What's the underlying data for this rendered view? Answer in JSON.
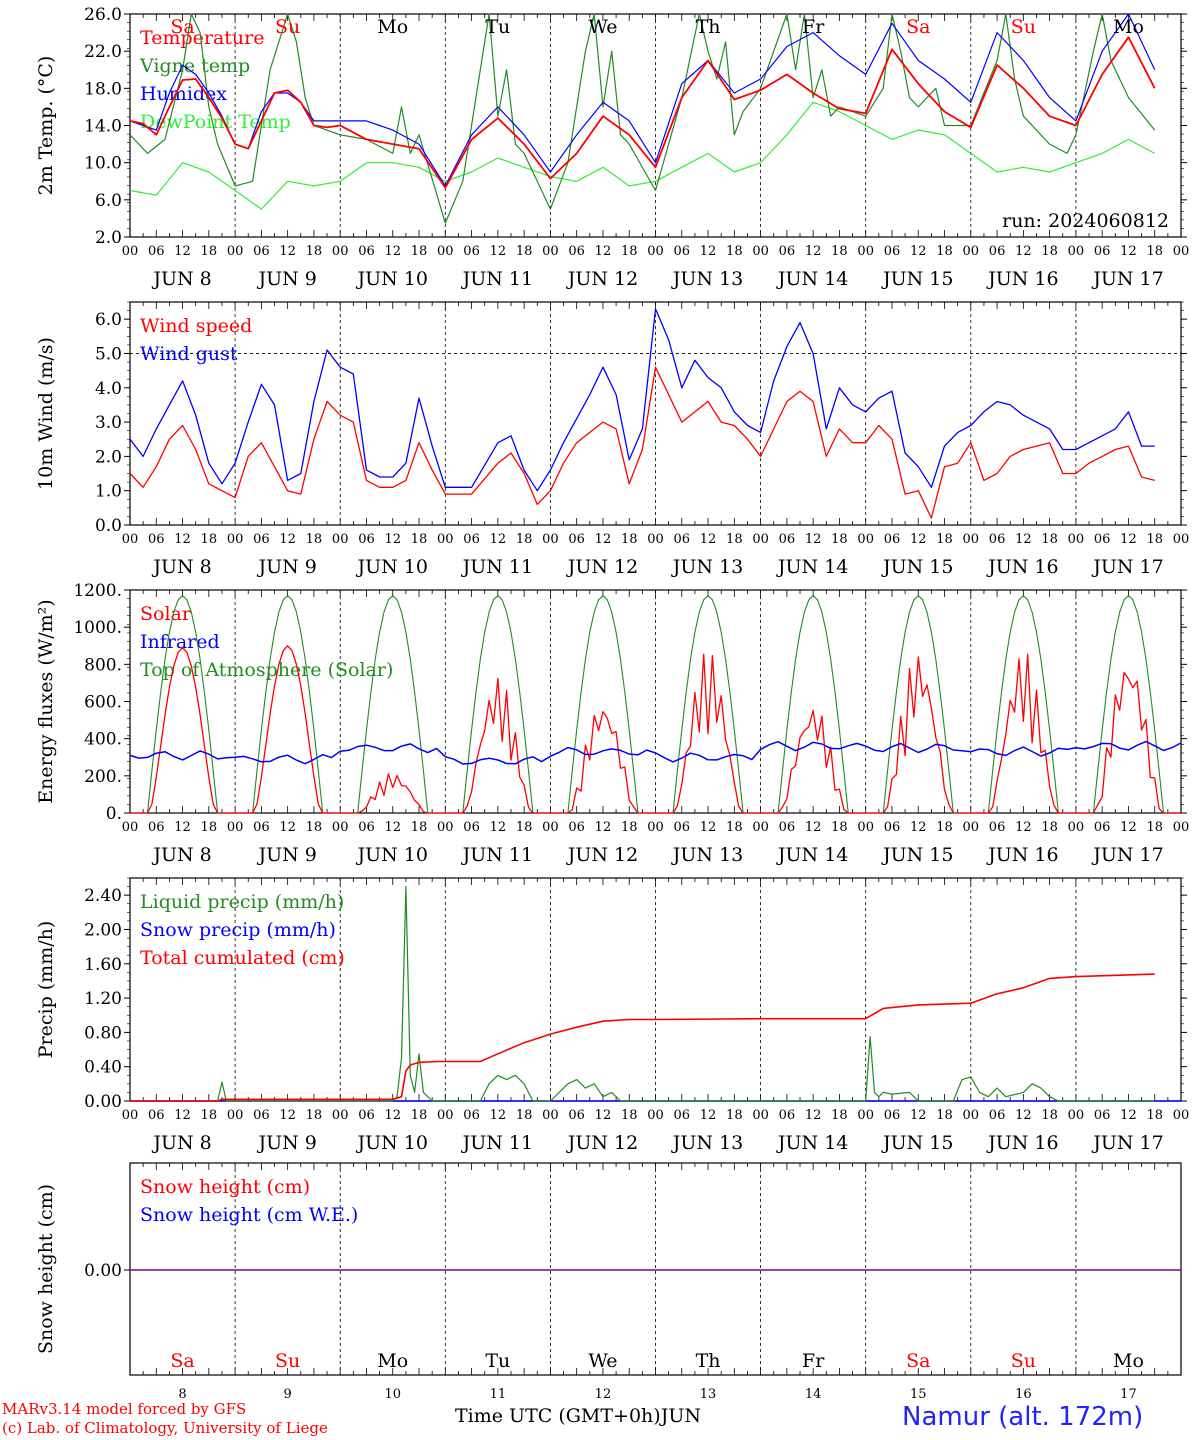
{
  "run_label": "run: 2024060812",
  "location": "Namur (alt. 172m)",
  "credits": {
    "model": "MARv3.14 model forced by GFS",
    "lab": "(c) Lab. of Climatology, University of Liege"
  },
  "x_axis": {
    "title": "Time UTC (GMT+0h)",
    "month": "JUN",
    "date_labels": [
      "JUN  8",
      "JUN  9",
      "JUN 10",
      "JUN 11",
      "JUN 12",
      "JUN 13",
      "JUN 14",
      "JUN 15",
      "JUN 16",
      "JUN 17"
    ],
    "hour_labels": [
      "00",
      "06",
      "12",
      "18"
    ],
    "day_numbers": [
      "8",
      "9",
      "10",
      "11",
      "12",
      "13",
      "14",
      "15",
      "16",
      "17"
    ],
    "weekdays": [
      "Sa",
      "Su",
      "Mo",
      "Tu",
      "We",
      "Th",
      "Fr",
      "Sa",
      "Su",
      "Mo"
    ],
    "weekday_colors": [
      "#ff0000",
      "#ff0000",
      "#000000",
      "#000000",
      "#000000",
      "#000000",
      "#000000",
      "#ff0000",
      "#ff0000",
      "#000000"
    ]
  },
  "chart_data": [
    {
      "type": "line",
      "ylabel": "2m Temp. (°C)",
      "ylim": [
        2.0,
        26.0
      ],
      "yticks": [
        "2.0",
        "6.0",
        "10.0",
        "14.0",
        "18.0",
        "22.0",
        "26.0"
      ],
      "x_unit": "hours since Jun 8 00 UTC",
      "series": [
        {
          "name": "Temperature",
          "color": "#ff0000",
          "x": [
            0,
            3,
            6,
            9,
            12,
            15,
            18,
            21,
            24,
            27,
            30,
            33,
            36,
            39,
            42,
            45,
            48,
            54,
            60,
            66,
            72,
            78,
            84,
            90,
            96,
            102,
            108,
            114,
            120,
            126,
            132,
            138,
            144,
            150,
            156,
            162,
            168,
            174,
            180,
            186,
            192,
            198,
            204,
            210,
            216,
            222,
            228,
            234
          ],
          "values": [
            14.5,
            14.2,
            13.0,
            16.0,
            18.9,
            19.0,
            17.0,
            14.8,
            12.0,
            11.5,
            14.5,
            17.5,
            17.8,
            16.5,
            14.0,
            13.8,
            14.0,
            12.5,
            12.0,
            11.5,
            7.3,
            12.5,
            14.8,
            12.0,
            8.3,
            11.0,
            15.0,
            13.0,
            9.5,
            17.0,
            21.0,
            16.8,
            17.8,
            19.5,
            17.5,
            15.8,
            15.3,
            22.2,
            18.5,
            15.5,
            13.8,
            20.5,
            18.0,
            15.0,
            14.0,
            19.5,
            23.5,
            18.0
          ]
        },
        {
          "name": "Vigne temp",
          "color": "#228b22",
          "x": [
            0,
            4,
            8,
            12,
            14,
            16,
            18,
            20,
            24,
            28,
            32,
            36,
            38,
            40,
            42,
            48,
            54,
            60,
            62,
            64,
            66,
            72,
            76,
            80,
            82,
            84,
            86,
            88,
            90,
            96,
            100,
            104,
            106,
            108,
            110,
            112,
            114,
            120,
            126,
            130,
            132,
            134,
            136,
            138,
            140,
            144,
            150,
            152,
            154,
            156,
            158,
            160,
            162,
            168,
            172,
            174,
            176,
            178,
            180,
            184,
            186,
            192,
            198,
            200,
            202,
            204,
            210,
            214,
            216,
            220,
            222,
            224,
            228,
            234
          ],
          "values": [
            13.0,
            11.0,
            12.5,
            20.0,
            26.0,
            24.0,
            16.0,
            12.0,
            7.5,
            8.0,
            20.0,
            26.0,
            23.0,
            17.0,
            14.0,
            13.0,
            12.5,
            11.0,
            16.0,
            11.0,
            13.0,
            3.5,
            8.0,
            20.0,
            26.0,
            15.0,
            20.0,
            12.0,
            11.0,
            5.0,
            10.0,
            22.0,
            26.0,
            16.0,
            22.0,
            13.0,
            12.0,
            7.0,
            17.0,
            26.0,
            22.0,
            19.0,
            23.0,
            13.0,
            15.5,
            18.0,
            26.0,
            20.0,
            26.0,
            17.0,
            20.0,
            15.0,
            16.0,
            15.0,
            18.0,
            26.0,
            22.0,
            17.0,
            16.0,
            18.0,
            14.0,
            14.0,
            21.0,
            26.0,
            19.0,
            15.0,
            12.0,
            11.0,
            13.0,
            22.0,
            26.0,
            21.0,
            17.0,
            13.5
          ]
        },
        {
          "name": "Humidex",
          "color": "#0000ff",
          "x": [
            0,
            3,
            6,
            9,
            12,
            15,
            18,
            21,
            24,
            27,
            30,
            33,
            36,
            39,
            42,
            45,
            48,
            54,
            60,
            66,
            72,
            78,
            84,
            90,
            96,
            102,
            108,
            114,
            120,
            126,
            132,
            138,
            144,
            150,
            156,
            162,
            168,
            174,
            180,
            186,
            192,
            198,
            204,
            210,
            216,
            222,
            228,
            234
          ],
          "values": [
            14.5,
            14.0,
            13.5,
            17.5,
            20.5,
            19.5,
            17.5,
            15.0,
            12.0,
            11.5,
            15.5,
            17.5,
            17.5,
            16.5,
            14.5,
            14.5,
            14.5,
            14.5,
            13.5,
            12.0,
            7.5,
            13.0,
            16.0,
            13.0,
            9.0,
            13.0,
            16.5,
            14.5,
            10.0,
            18.5,
            21.0,
            17.5,
            19.0,
            22.5,
            24.0,
            21.5,
            19.5,
            25.0,
            21.0,
            19.0,
            16.5,
            24.0,
            21.0,
            17.0,
            14.5,
            22.0,
            26.0,
            20.0
          ]
        },
        {
          "name": "DewPoint Temp",
          "color": "#33ee33",
          "x": [
            0,
            6,
            12,
            18,
            24,
            30,
            36,
            42,
            48,
            54,
            60,
            66,
            72,
            78,
            84,
            90,
            96,
            102,
            108,
            114,
            120,
            126,
            132,
            138,
            144,
            150,
            156,
            162,
            168,
            174,
            180,
            186,
            192,
            198,
            204,
            210,
            216,
            222,
            228,
            234
          ],
          "values": [
            7.0,
            6.5,
            10.0,
            9.0,
            7.0,
            5.0,
            8.0,
            7.5,
            8.0,
            10.0,
            10.0,
            9.5,
            8.0,
            9.0,
            10.5,
            9.5,
            8.5,
            8.0,
            9.5,
            7.5,
            8.0,
            9.5,
            11.0,
            9.0,
            10.0,
            13.0,
            16.5,
            15.5,
            14.0,
            12.5,
            13.5,
            13.0,
            11.0,
            9.0,
            9.5,
            9.0,
            10.0,
            11.0,
            12.5,
            11.0
          ]
        }
      ]
    },
    {
      "type": "line",
      "ylabel": "10m Wind (m/s)",
      "ylim": [
        0.0,
        6.5
      ],
      "yticks": [
        "0.0",
        "1.0",
        "2.0",
        "3.0",
        "4.0",
        "5.0",
        "6.0"
      ],
      "dashed_reference": 5.0,
      "series": [
        {
          "name": "Wind speed",
          "color": "#ff0000",
          "x": [
            0,
            3,
            6,
            9,
            12,
            15,
            18,
            21,
            24,
            27,
            30,
            33,
            36,
            39,
            42,
            45,
            48,
            51,
            54,
            57,
            60,
            63,
            66,
            69,
            72,
            78,
            84,
            87,
            90,
            93,
            96,
            99,
            102,
            105,
            108,
            111,
            114,
            117,
            120,
            126,
            132,
            135,
            138,
            141,
            144,
            147,
            150,
            153,
            156,
            159,
            162,
            165,
            168,
            171,
            174,
            177,
            180,
            183,
            186,
            189,
            192,
            195,
            198,
            201,
            204,
            207,
            210,
            213,
            216,
            219,
            222,
            225,
            228,
            231,
            234
          ],
          "values": [
            1.5,
            1.1,
            1.7,
            2.5,
            2.9,
            2.2,
            1.2,
            1.0,
            0.8,
            2.0,
            2.4,
            1.7,
            1.0,
            0.9,
            2.5,
            3.6,
            3.2,
            3.0,
            1.3,
            1.1,
            1.1,
            1.3,
            2.4,
            1.6,
            0.9,
            0.9,
            1.8,
            2.1,
            1.5,
            0.6,
            1.0,
            1.8,
            2.4,
            2.7,
            3.0,
            2.8,
            1.2,
            2.2,
            4.6,
            3.0,
            3.6,
            3.0,
            2.9,
            2.5,
            2.0,
            2.8,
            3.6,
            3.9,
            3.6,
            2.0,
            2.8,
            2.4,
            2.4,
            2.9,
            2.5,
            0.9,
            1.0,
            0.2,
            1.7,
            1.8,
            2.4,
            1.3,
            1.5,
            2.0,
            2.2,
            2.3,
            2.4,
            1.5,
            1.5,
            1.8,
            2.0,
            2.2,
            2.3,
            1.4,
            1.3
          ]
        },
        {
          "name": "Wind gust",
          "color": "#0000ff",
          "x": [
            0,
            3,
            6,
            9,
            12,
            15,
            18,
            21,
            24,
            27,
            30,
            33,
            36,
            39,
            42,
            45,
            48,
            51,
            54,
            57,
            60,
            63,
            66,
            69,
            72,
            78,
            84,
            87,
            90,
            93,
            96,
            99,
            102,
            105,
            108,
            111,
            114,
            117,
            120,
            123,
            126,
            129,
            132,
            135,
            138,
            141,
            144,
            147,
            150,
            153,
            156,
            159,
            162,
            165,
            168,
            171,
            174,
            177,
            180,
            183,
            186,
            189,
            192,
            195,
            198,
            201,
            204,
            207,
            210,
            213,
            216,
            219,
            222,
            225,
            228,
            231,
            234
          ],
          "values": [
            2.5,
            2.0,
            2.8,
            3.5,
            4.2,
            3.2,
            1.8,
            1.2,
            1.8,
            3.0,
            4.1,
            3.5,
            1.3,
            1.5,
            3.6,
            5.1,
            4.6,
            4.4,
            1.6,
            1.4,
            1.4,
            1.8,
            3.7,
            2.3,
            1.1,
            1.1,
            2.4,
            2.6,
            1.6,
            1.0,
            1.6,
            2.4,
            3.1,
            3.8,
            4.6,
            3.8,
            1.9,
            2.8,
            6.3,
            5.4,
            4.0,
            4.8,
            4.3,
            4.0,
            3.3,
            2.9,
            2.7,
            4.2,
            5.2,
            5.9,
            5.0,
            2.8,
            4.0,
            3.5,
            3.3,
            3.7,
            3.9,
            2.1,
            1.7,
            1.1,
            2.3,
            2.7,
            2.9,
            3.3,
            3.6,
            3.5,
            3.2,
            3.0,
            2.8,
            2.2,
            2.2,
            2.4,
            2.6,
            2.8,
            3.3,
            2.3,
            2.3
          ]
        }
      ]
    },
    {
      "type": "line",
      "ylabel": "Energy fluxes (W/m²)",
      "ylim": [
        0,
        1200
      ],
      "yticks": [
        "0.",
        "200.",
        "400.",
        "600.",
        "800.",
        "1000.",
        "1200."
      ],
      "series": [
        {
          "name": "Solar",
          "color": "#ff0000",
          "daily_peaks": [
            890,
            900,
            220,
            740,
            620,
            880,
            600,
            880,
            880,
            870
          ]
        },
        {
          "name": "Infrared",
          "color": "#0000ff",
          "daily_mean": [
            310,
            290,
            350,
            280,
            330,
            300,
            360,
            350,
            330,
            360
          ]
        },
        {
          "name": "Top of Atmosphere (Solar)",
          "color": "#228b22",
          "daily_peak": 1170,
          "sunrise_h": 4,
          "sunset_h": 20
        }
      ]
    },
    {
      "type": "line",
      "ylabel": "Precip (mm/h)",
      "ylim": [
        0.0,
        2.6
      ],
      "yticks": [
        "0.00",
        "0.40",
        "0.80",
        "1.20",
        "1.60",
        "2.00",
        "2.40"
      ],
      "series": [
        {
          "name": "Liquid precip (mm/h)",
          "color": "#228b22",
          "x": [
            0,
            20,
            21,
            22,
            23,
            24,
            60,
            61,
            62,
            63,
            64,
            65,
            66,
            67,
            68,
            69,
            70,
            72,
            80,
            82,
            84,
            86,
            88,
            90,
            92,
            96,
            100,
            102,
            104,
            106,
            108,
            110,
            112,
            114,
            168,
            169,
            170,
            171,
            172,
            174,
            178,
            180,
            188,
            190,
            192,
            194,
            196,
            198,
            200,
            204,
            206,
            208,
            210,
            212,
            214,
            216,
            234
          ],
          "values": [
            0,
            0,
            0.22,
            0,
            0,
            0,
            0,
            0.05,
            0.5,
            2.5,
            0.3,
            0.1,
            0.55,
            0.1,
            0.05,
            0,
            0,
            0,
            0,
            0.2,
            0.3,
            0.25,
            0.3,
            0.2,
            0,
            0,
            0.2,
            0.25,
            0.15,
            0.2,
            0.05,
            0.1,
            0,
            0,
            0,
            0.75,
            0.1,
            0.05,
            0.1,
            0.08,
            0.1,
            0,
            0,
            0.25,
            0.28,
            0.1,
            0.05,
            0.15,
            0.05,
            0.1,
            0.2,
            0.15,
            0.05,
            0,
            0,
            0,
            0
          ]
        },
        {
          "name": "Snow precip (mm/h)",
          "color": "#0000ff",
          "constant": 0.0
        },
        {
          "name": "Total cumulated (cm)",
          "color": "#ff0000",
          "x": [
            0,
            20,
            21,
            60,
            62,
            63,
            64,
            66,
            70,
            80,
            84,
            90,
            96,
            102,
            108,
            114,
            120,
            144,
            150,
            156,
            168,
            170,
            172,
            180,
            192,
            198,
            204,
            210,
            216,
            234
          ],
          "values": [
            0,
            0,
            0.02,
            0.02,
            0.05,
            0.35,
            0.42,
            0.45,
            0.46,
            0.46,
            0.55,
            0.68,
            0.78,
            0.86,
            0.93,
            0.95,
            0.95,
            0.96,
            0.96,
            0.96,
            0.96,
            1.02,
            1.08,
            1.12,
            1.14,
            1.25,
            1.32,
            1.43,
            1.45,
            1.48
          ]
        }
      ]
    },
    {
      "type": "line",
      "ylabel": "Snow height (cm)",
      "yticks": [
        "0.00"
      ],
      "series": [
        {
          "name": "Snow height (cm)",
          "color": "#ff0000",
          "constant": 0.0
        },
        {
          "name": "Snow height (cm W.E.)",
          "color": "#0000ff",
          "constant": 0.0
        }
      ]
    }
  ]
}
